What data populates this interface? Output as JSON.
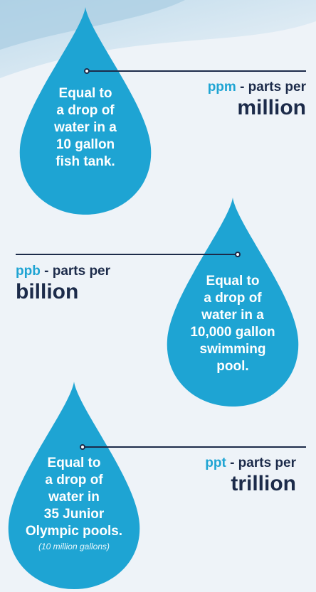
{
  "colors": {
    "drop": "#1ea4d3",
    "navy": "#1c2b4a",
    "accent": "#1ea4d3"
  },
  "items": [
    {
      "abbr": "ppm",
      "dash_text": " - parts per",
      "big": "million",
      "drop_lines": [
        "Equal to",
        "a drop of",
        "water in a",
        "10 gallon",
        "fish tank."
      ],
      "note": ""
    },
    {
      "abbr": "ppb",
      "dash_text": " - parts per",
      "big": "billion",
      "drop_lines": [
        "Equal to",
        "a drop of",
        "water in a",
        "10,000 gallon",
        "swimming",
        "pool."
      ],
      "note": ""
    },
    {
      "abbr": "ppt",
      "dash_text": " - parts per",
      "big": "trillion",
      "drop_lines": [
        "Equal to",
        "a drop of",
        "water in",
        "35 Junior",
        "Olympic pools."
      ],
      "note": "(10 million gallons)"
    }
  ]
}
